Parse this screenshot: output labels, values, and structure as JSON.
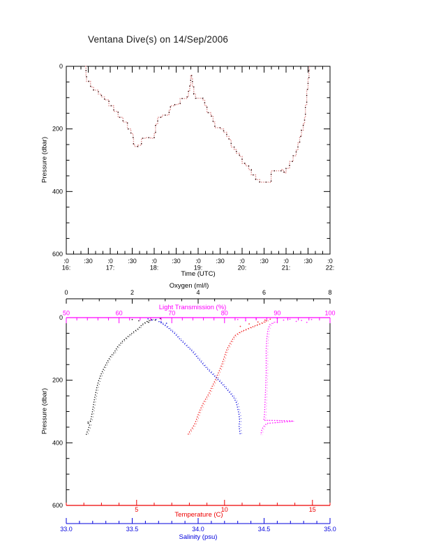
{
  "title": "Ventana Dive(s) on 14/Sep/2006",
  "chart_data": [
    {
      "id": "dive-depth-timeseries",
      "type": "line",
      "title": "Ventana Dive(s) on 14/Sep/2006",
      "xlabel": "Time (UTC)",
      "ylabel": "Pressure (dbar)",
      "x_range": [
        16,
        22
      ],
      "y_range": [
        0,
        600
      ],
      "y_inverted": true,
      "grid": false,
      "y_ticks": [
        0,
        200,
        400,
        600
      ],
      "y_minor_step": 50,
      "x_minor_step_hours": 0.1667,
      "x_ticks": [
        {
          "v": 16.0,
          "label": ":0",
          "hour": "16:"
        },
        {
          "v": 16.5,
          "label": ":30"
        },
        {
          "v": 17.0,
          "label": ":0",
          "hour": "17:"
        },
        {
          "v": 17.5,
          "label": ":30"
        },
        {
          "v": 18.0,
          "label": ":0",
          "hour": "18:"
        },
        {
          "v": 18.5,
          "label": ":30"
        },
        {
          "v": 19.0,
          "label": ":0",
          "hour": "19:"
        },
        {
          "v": 19.5,
          "label": ":30"
        },
        {
          "v": 20.0,
          "label": ":0",
          "hour": "20:"
        },
        {
          "v": 20.5,
          "label": ":30"
        },
        {
          "v": 21.0,
          "label": ":0",
          "hour": "21:"
        },
        {
          "v": 21.5,
          "label": ":30"
        },
        {
          "v": 22.0,
          "label": ":0",
          "hour": "22:"
        }
      ],
      "trace_colors": [
        "#e09090",
        "#3a0f0f"
      ],
      "points": [
        [
          16.43,
          0
        ],
        [
          16.45,
          28
        ],
        [
          16.46,
          48
        ],
        [
          16.55,
          66
        ],
        [
          16.62,
          76
        ],
        [
          16.73,
          89
        ],
        [
          16.8,
          98
        ],
        [
          16.87,
          107
        ],
        [
          16.97,
          126
        ],
        [
          17.08,
          144
        ],
        [
          17.18,
          163
        ],
        [
          17.29,
          178
        ],
        [
          17.39,
          200
        ],
        [
          17.47,
          215
        ],
        [
          17.52,
          230
        ],
        [
          17.53,
          248
        ],
        [
          17.55,
          256
        ],
        [
          17.63,
          252
        ],
        [
          17.71,
          230
        ],
        [
          17.79,
          228
        ],
        [
          17.92,
          230
        ],
        [
          18.0,
          215
        ],
        [
          18.03,
          185
        ],
        [
          18.08,
          163
        ],
        [
          18.18,
          156
        ],
        [
          18.32,
          154
        ],
        [
          18.34,
          141
        ],
        [
          18.37,
          126
        ],
        [
          18.47,
          122
        ],
        [
          18.55,
          120
        ],
        [
          18.59,
          103
        ],
        [
          18.74,
          98
        ],
        [
          18.78,
          77
        ],
        [
          18.81,
          59
        ],
        [
          18.83,
          28
        ],
        [
          18.85,
          40
        ],
        [
          18.87,
          66
        ],
        [
          18.9,
          89
        ],
        [
          18.94,
          102
        ],
        [
          19.05,
          102
        ],
        [
          19.11,
          107
        ],
        [
          19.15,
          126
        ],
        [
          19.2,
          148
        ],
        [
          19.29,
          159
        ],
        [
          19.34,
          178
        ],
        [
          19.38,
          196
        ],
        [
          19.52,
          200
        ],
        [
          19.58,
          211
        ],
        [
          19.65,
          224
        ],
        [
          19.7,
          234
        ],
        [
          19.75,
          258
        ],
        [
          19.82,
          266
        ],
        [
          19.87,
          278
        ],
        [
          19.94,
          288
        ],
        [
          20.0,
          310
        ],
        [
          20.08,
          318
        ],
        [
          20.15,
          330
        ],
        [
          20.21,
          347
        ],
        [
          20.31,
          362
        ],
        [
          20.4,
          370
        ],
        [
          20.64,
          371
        ],
        [
          20.66,
          334
        ],
        [
          20.9,
          330
        ],
        [
          20.94,
          338
        ],
        [
          20.98,
          340
        ],
        [
          21.0,
          326
        ],
        [
          21.08,
          304
        ],
        [
          21.16,
          286
        ],
        [
          21.23,
          268
        ],
        [
          21.27,
          245
        ],
        [
          21.31,
          224
        ],
        [
          21.35,
          204
        ],
        [
          21.39,
          184
        ],
        [
          21.42,
          163
        ],
        [
          21.44,
          122
        ],
        [
          21.47,
          74
        ],
        [
          21.5,
          40
        ],
        [
          21.52,
          10
        ],
        [
          21.53,
          0
        ]
      ]
    },
    {
      "id": "ctd-profiles",
      "type": "scatter",
      "ylabel": "Pressure (dbar)",
      "y_range": [
        0,
        600
      ],
      "y_inverted": true,
      "grid": false,
      "y_ticks": [
        0,
        200,
        400,
        600
      ],
      "y_minor_step": 50,
      "series": [
        {
          "name": "Oxygen (ml/l)",
          "axis_position": "top-outer",
          "color": "#000000",
          "range": [
            0,
            8
          ],
          "ticks": [
            0,
            2,
            4,
            6,
            8
          ],
          "minor_step": 0.5,
          "points": [
            [
              2.6,
              6
            ],
            [
              2.45,
              12
            ],
            [
              2.3,
              22
            ],
            [
              2.2,
              34
            ],
            [
              2.05,
              45
            ],
            [
              1.85,
              62
            ],
            [
              1.7,
              76
            ],
            [
              1.55,
              94
            ],
            [
              1.45,
              112
            ],
            [
              1.34,
              124
            ],
            [
              1.25,
              140
            ],
            [
              1.15,
              160
            ],
            [
              1.05,
              182
            ],
            [
              0.98,
              202
            ],
            [
              0.93,
              222
            ],
            [
              0.89,
              242
            ],
            [
              0.85,
              262
            ],
            [
              0.82,
              283
            ],
            [
              0.79,
              302
            ],
            [
              0.76,
              318
            ],
            [
              0.74,
              330
            ],
            [
              0.63,
              335
            ],
            [
              0.71,
              342
            ],
            [
              0.67,
              356
            ],
            [
              0.62,
              369
            ],
            [
              0.6,
              376
            ]
          ],
          "surface_scatter": [
            [
              2.85,
              3
            ],
            [
              2.7,
              8
            ],
            [
              2.5,
              15
            ],
            [
              2.2,
              10
            ],
            [
              2.0,
              6
            ]
          ]
        },
        {
          "name": "Light Transmission (%)",
          "axis_position": "top-border",
          "color": "#ff00ff",
          "range": [
            50,
            100
          ],
          "ticks": [
            50,
            60,
            70,
            80,
            90,
            100
          ],
          "minor_step": 2,
          "points": [
            [
              89.5,
              14
            ],
            [
              88.6,
              22
            ],
            [
              88.2,
              40
            ],
            [
              88.0,
              70
            ],
            [
              87.9,
              100
            ],
            [
              87.9,
              140
            ],
            [
              87.9,
              180
            ],
            [
              87.8,
              220
            ],
            [
              87.7,
              260
            ],
            [
              87.6,
              300
            ],
            [
              87.5,
              322
            ],
            [
              87.4,
              328
            ],
            [
              90.5,
              329
            ],
            [
              92.6,
              330
            ],
            [
              93.0,
              331
            ],
            [
              88.0,
              338
            ],
            [
              87.3,
              350
            ],
            [
              87.0,
              362
            ],
            [
              86.9,
              375
            ]
          ],
          "surface_scatter": [
            [
              82.5,
              6
            ],
            [
              84.0,
              10
            ],
            [
              86.0,
              4
            ],
            [
              90.0,
              3
            ],
            [
              91.2,
              8
            ],
            [
              92.4,
              5
            ],
            [
              93.6,
              12
            ],
            [
              94.6,
              9
            ],
            [
              95.6,
              15
            ],
            [
              96.5,
              6
            ]
          ]
        },
        {
          "name": "Temperature (C)",
          "axis_position": "bottom-border",
          "color": "#ee0000",
          "range": [
            1,
            16
          ],
          "ticks": [
            5,
            10,
            15
          ],
          "minor_step": 1,
          "points": [
            [
              12.4,
              10
            ],
            [
              12.1,
              18
            ],
            [
              11.7,
              27
            ],
            [
              11.3,
              36
            ],
            [
              10.9,
              46
            ],
            [
              10.6,
              57
            ],
            [
              10.45,
              70
            ],
            [
              10.3,
              84
            ],
            [
              10.15,
              100
            ],
            [
              10.05,
              115
            ],
            [
              9.95,
              133
            ],
            [
              9.85,
              150
            ],
            [
              9.7,
              170
            ],
            [
              9.55,
              190
            ],
            [
              9.4,
              208
            ],
            [
              9.25,
              225
            ],
            [
              9.1,
              244
            ],
            [
              8.95,
              258
            ],
            [
              8.8,
              272
            ],
            [
              8.65,
              290
            ],
            [
              8.5,
              310
            ],
            [
              8.4,
              326
            ],
            [
              8.3,
              340
            ],
            [
              8.15,
              354
            ],
            [
              8.0,
              366
            ],
            [
              7.9,
              376
            ]
          ],
          "surface_scatter": [
            [
              12.6,
              5
            ],
            [
              12.3,
              8
            ],
            [
              11.9,
              14
            ],
            [
              11.4,
              20
            ],
            [
              10.9,
              28
            ]
          ]
        },
        {
          "name": "Salinity (psu)",
          "axis_position": "bottom-outer",
          "color": "#0000dd",
          "range": [
            33.0,
            35.0
          ],
          "ticks": [
            "33.0",
            "33.5",
            "34.0",
            "34.5",
            "35.0"
          ],
          "minor_step": 0.1,
          "points": [
            [
              33.7,
              12
            ],
            [
              33.74,
              22
            ],
            [
              33.78,
              35
            ],
            [
              33.82,
              50
            ],
            [
              33.86,
              68
            ],
            [
              33.9,
              85
            ],
            [
              33.95,
              105
            ],
            [
              34.0,
              130
            ],
            [
              34.04,
              150
            ],
            [
              34.08,
              168
            ],
            [
              34.12,
              185
            ],
            [
              34.16,
              202
            ],
            [
              34.2,
              220
            ],
            [
              34.24,
              240
            ],
            [
              34.27,
              255
            ],
            [
              34.29,
              272
            ],
            [
              34.3,
              290
            ],
            [
              34.31,
              310
            ],
            [
              34.315,
              330
            ],
            [
              34.31,
              345
            ],
            [
              34.315,
              362
            ],
            [
              34.32,
              376
            ]
          ],
          "surface_scatter": [
            [
              33.62,
              4
            ],
            [
              33.65,
              8
            ],
            [
              33.68,
              6
            ],
            [
              33.72,
              14
            ],
            [
              33.76,
              18
            ]
          ]
        }
      ]
    }
  ]
}
